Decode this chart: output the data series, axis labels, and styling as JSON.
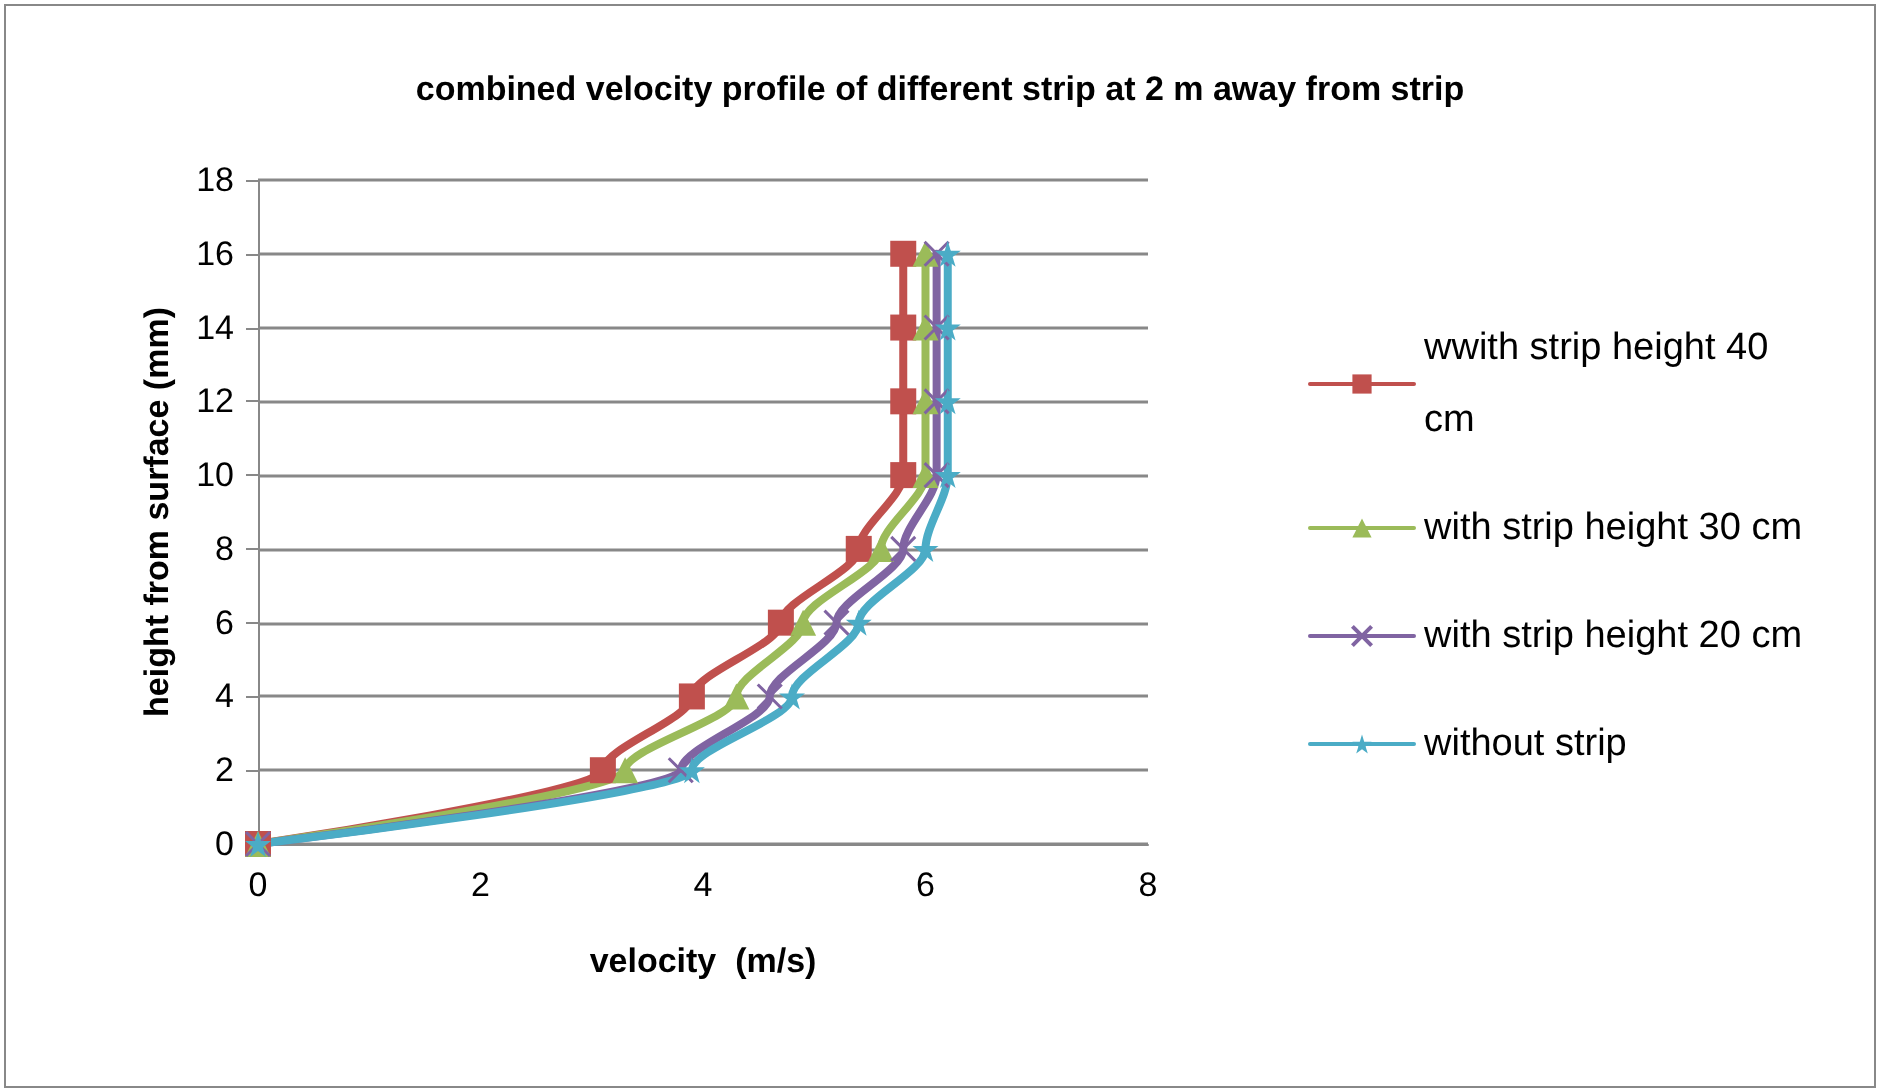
{
  "chart_data": {
    "type": "line",
    "title": "combined velocity profile of different strip at 2 m away from strip",
    "xlabel": "velocity  (m/s)",
    "ylabel": "height from surface (mm)",
    "xlim": [
      0,
      8
    ],
    "xticks": [
      0,
      2,
      4,
      6,
      8
    ],
    "ylim": [
      0,
      18
    ],
    "yticks": [
      0,
      2,
      4,
      6,
      8,
      10,
      12,
      14,
      16,
      18
    ],
    "grid": "y",
    "legend": "right",
    "series": [
      {
        "name": "wwith strip height 40 cm",
        "color": "#c0504d",
        "marker": "square",
        "x": [
          0,
          3.1,
          3.9,
          4.7,
          5.4,
          5.8,
          5.8,
          5.8,
          5.8
        ],
        "values": [
          0,
          2,
          4,
          6,
          8,
          10,
          12,
          14,
          16
        ]
      },
      {
        "name": "with strip height 30 cm",
        "color": "#9bbb59",
        "marker": "triangle",
        "x": [
          0,
          3.3,
          4.3,
          4.9,
          5.6,
          6.0,
          6.0,
          6.0,
          6.0
        ],
        "values": [
          0,
          2,
          4,
          6,
          8,
          10,
          12,
          14,
          16
        ]
      },
      {
        "name": "with strip height 20 cm",
        "color": "#8064a2",
        "marker": "cross",
        "x": [
          0,
          3.8,
          4.6,
          5.2,
          5.8,
          6.1,
          6.1,
          6.1,
          6.1
        ],
        "values": [
          0,
          2,
          4,
          6,
          8,
          10,
          12,
          14,
          16
        ]
      },
      {
        "name": "without strip",
        "color": "#4bacc6",
        "marker": "star",
        "x": [
          0,
          3.9,
          4.8,
          5.4,
          6.0,
          6.2,
          6.2,
          6.2,
          6.2
        ],
        "values": [
          0,
          2,
          4,
          6,
          8,
          10,
          12,
          14,
          16
        ]
      }
    ]
  }
}
